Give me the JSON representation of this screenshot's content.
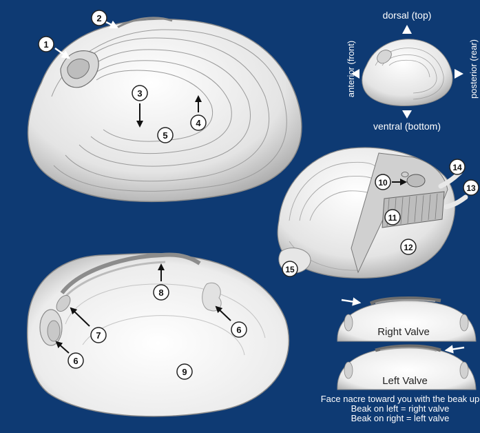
{
  "colors": {
    "background": "#0e3a73",
    "shell_light": "#f2f2f2",
    "shell_shade": "#b9b9b9",
    "arrow": "#ffffff",
    "callout_fill": "#ffffff",
    "callout_text": "#111111"
  },
  "orientation": {
    "top": "dorsal (top)",
    "bottom": "ventral (bottom)",
    "left": "anterior (front)",
    "right": "posterior (rear)"
  },
  "callouts": {
    "c1": "1",
    "c2": "2",
    "c3": "3",
    "c4": "4",
    "c5": "5",
    "c6a": "6",
    "c6b": "6",
    "c7": "7",
    "c8": "8",
    "c9": "9",
    "c10": "10",
    "c11": "11",
    "c12": "12",
    "c13": "13",
    "c14": "14",
    "c15": "15"
  },
  "valves": {
    "right": "Right Valve",
    "left": "Left Valve"
  },
  "note": {
    "line1": "Face nacre toward you with the beak up",
    "line2": "Beak on left = right valve",
    "line3": "Beak on right = left valve"
  }
}
